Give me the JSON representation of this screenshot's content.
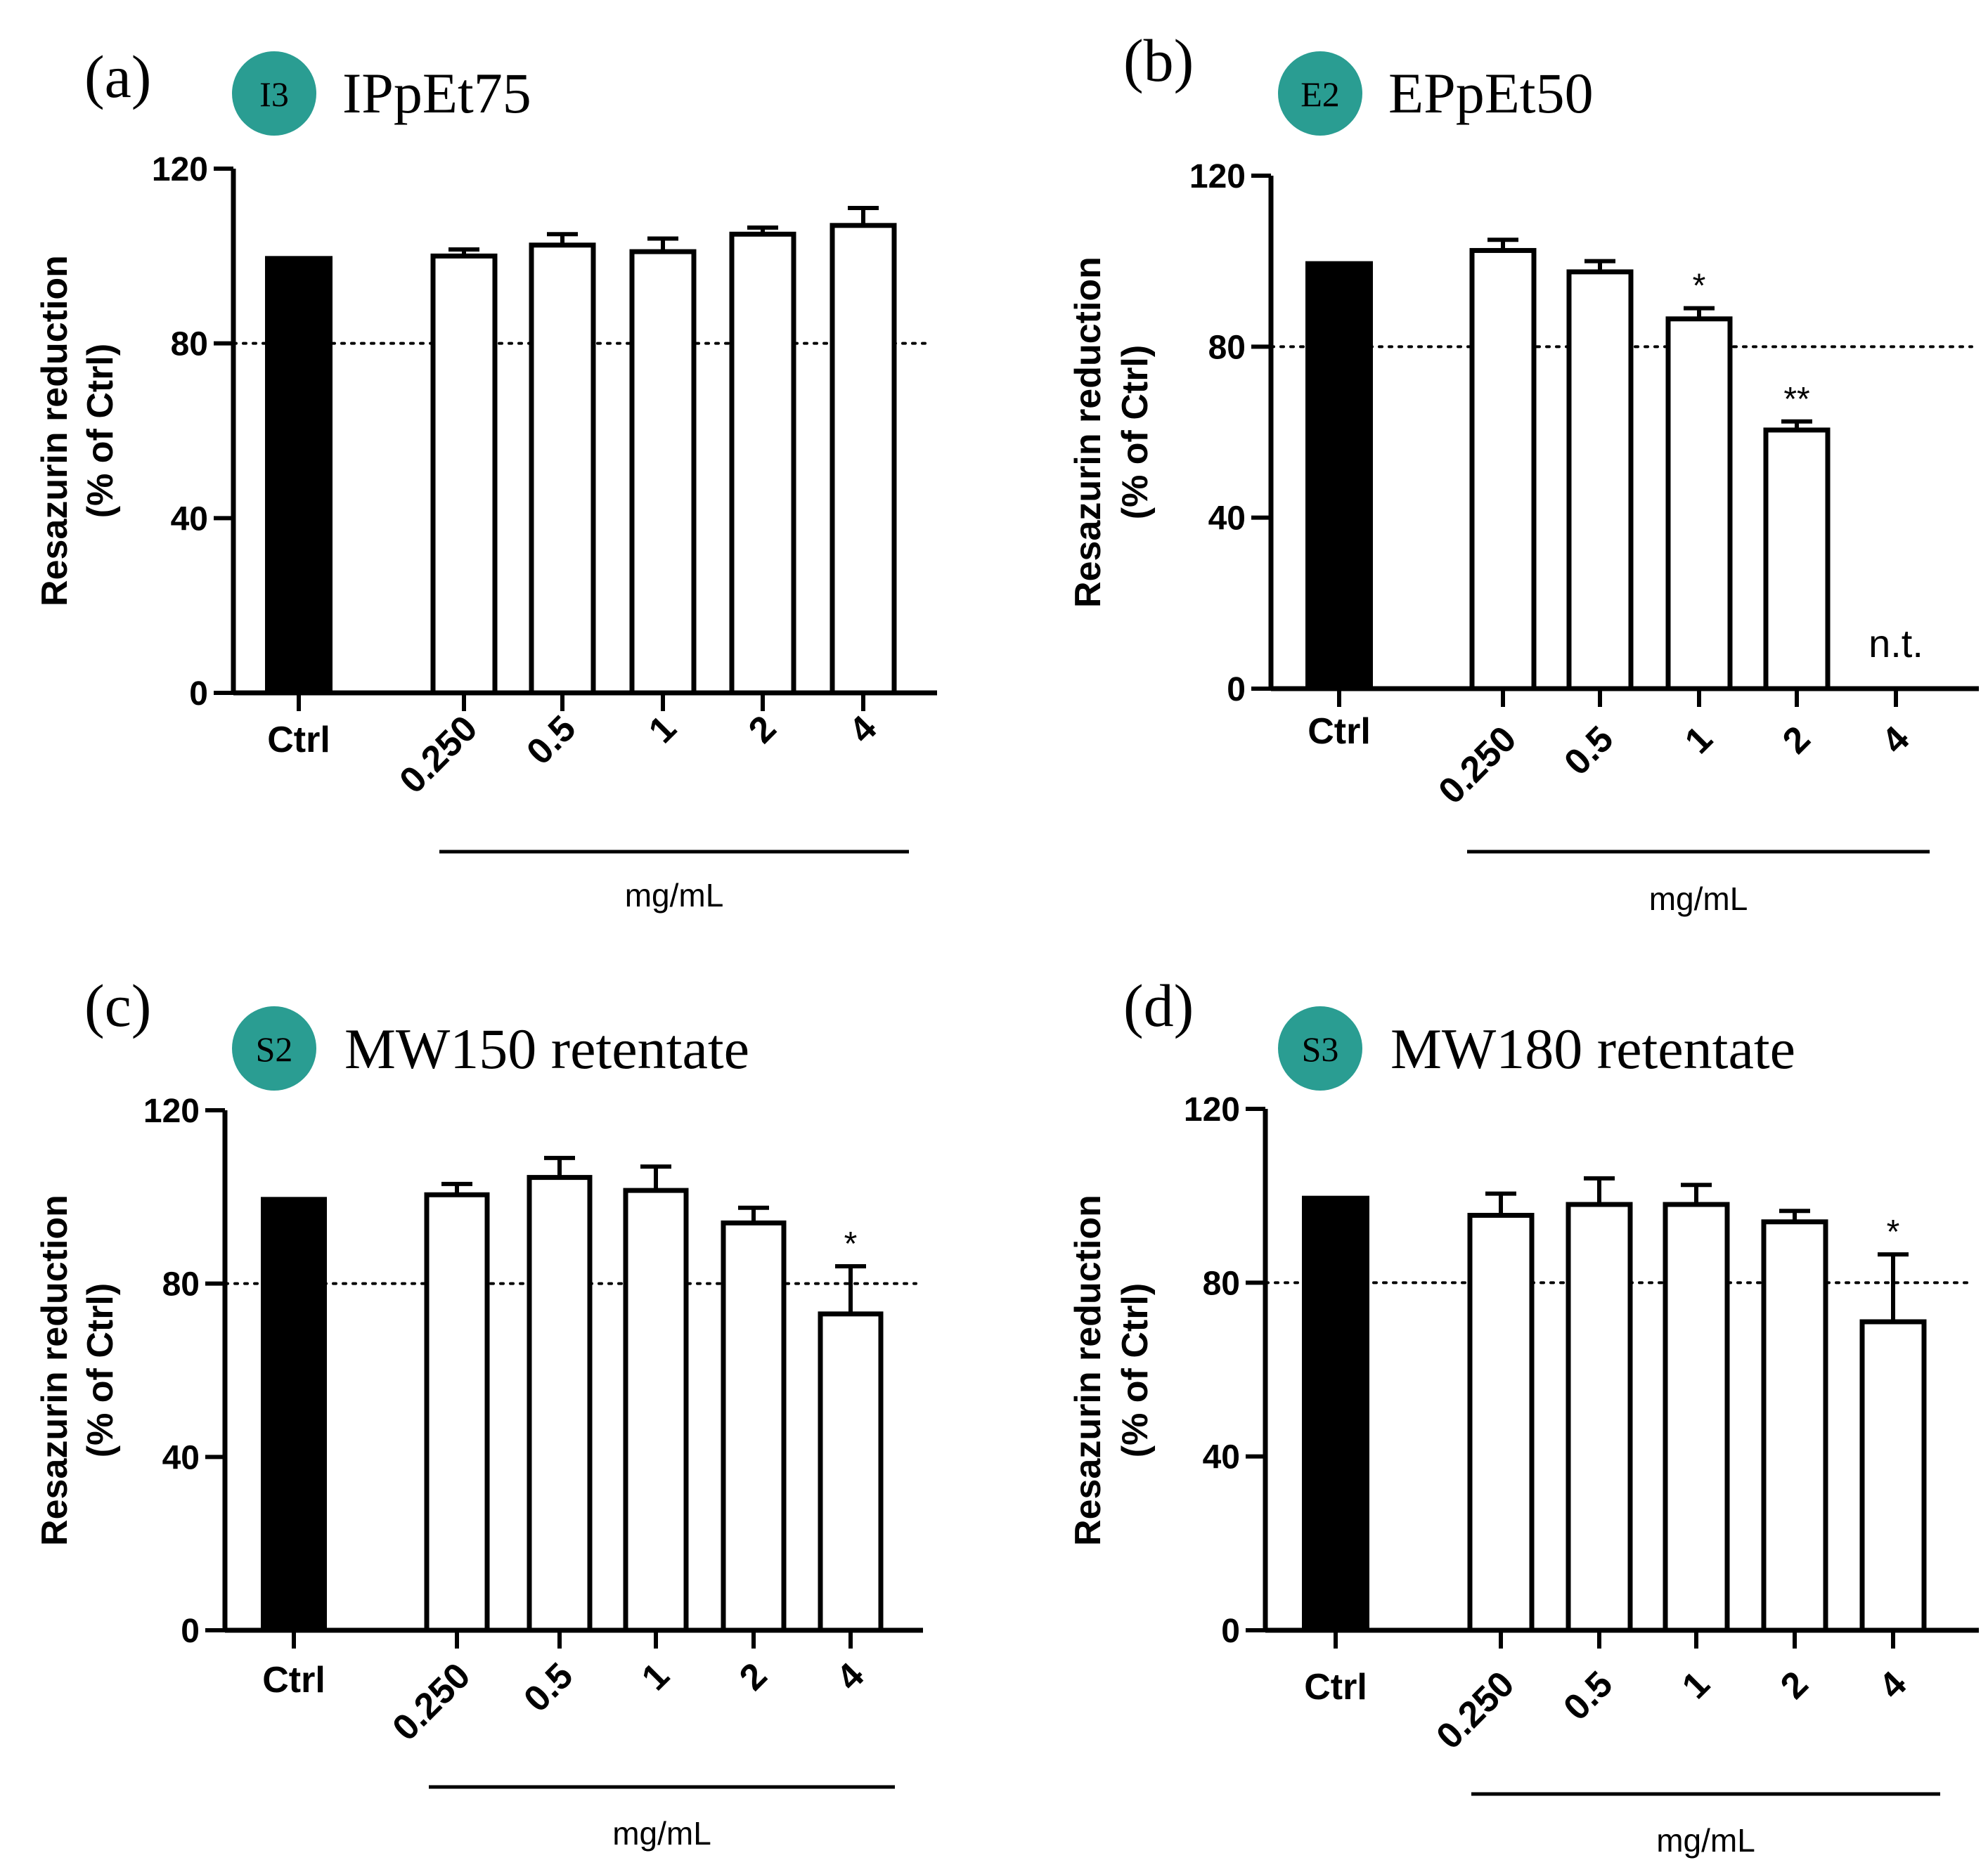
{
  "colors": {
    "badge": "#2a9d92",
    "control_bar": "#000000",
    "treated_bar": "#ffffff",
    "axis": "#000000"
  },
  "chart_data": [
    {
      "type": "bar",
      "panel_label": "(a)",
      "badge": "I3",
      "title": "IPpEt75",
      "categories": [
        "Ctrl",
        "0.250",
        "0.5",
        "1",
        "2",
        "4"
      ],
      "values": [
        100,
        100,
        102.5,
        101,
        105,
        107
      ],
      "errors": [
        0,
        1.5,
        2.5,
        3,
        1.5,
        4
      ],
      "annotations": [
        "",
        "",
        "",
        "",
        "",
        ""
      ],
      "ylabel_line1": "Resazurin reduction",
      "ylabel_line2": "(% of Ctrl)",
      "xlabel": "mg/mL",
      "ylim": [
        0,
        120
      ],
      "yticks": [
        0,
        40,
        80,
        120
      ],
      "reference_line": 80
    },
    {
      "type": "bar",
      "panel_label": "(b)",
      "badge": "E2",
      "title": "EPpEt50",
      "categories": [
        "Ctrl",
        "0.250",
        "0.5",
        "1",
        "2",
        "4"
      ],
      "values": [
        100,
        102.5,
        97.5,
        86.5,
        60.5,
        null
      ],
      "errors": [
        0,
        2.5,
        2.5,
        2.5,
        2,
        0
      ],
      "annotations": [
        "",
        "",
        "",
        "*",
        "**",
        "n.t."
      ],
      "ylabel_line1": "Resazurin reduction",
      "ylabel_line2": "(% of Ctrl)",
      "xlabel": "mg/mL",
      "ylim": [
        0,
        120
      ],
      "yticks": [
        0,
        40,
        80,
        120
      ],
      "reference_line": 80
    },
    {
      "type": "bar",
      "panel_label": "(c)",
      "badge": "S2",
      "title": "MW150 retentate",
      "categories": [
        "Ctrl",
        "0.250",
        "0.5",
        "1",
        "2",
        "4"
      ],
      "values": [
        100,
        100.5,
        104.5,
        101.5,
        94,
        73
      ],
      "errors": [
        0,
        2.5,
        4.5,
        5.5,
        3.5,
        11
      ],
      "annotations": [
        "",
        "",
        "",
        "",
        "",
        "*"
      ],
      "ylabel_line1": "Resazurin reduction",
      "ylabel_line2": "(% of Ctrl)",
      "xlabel": "mg/mL",
      "ylim": [
        0,
        120
      ],
      "yticks": [
        0,
        40,
        80,
        120
      ],
      "reference_line": 80
    },
    {
      "type": "bar",
      "panel_label": "(d)",
      "badge": "S3",
      "title": "MW180 retentate",
      "categories": [
        "Ctrl",
        "0.250",
        "0.5",
        "1",
        "2",
        "4"
      ],
      "values": [
        100,
        95.5,
        98,
        98,
        94,
        71
      ],
      "errors": [
        0,
        5,
        6,
        4.5,
        2.5,
        15.5
      ],
      "annotations": [
        "",
        "",
        "",
        "",
        "",
        "*"
      ],
      "ylabel_line1": "Resazurin reduction",
      "ylabel_line2": "(% of Ctrl)",
      "xlabel": "mg/mL",
      "ylim": [
        0,
        120
      ],
      "yticks": [
        0,
        40,
        80,
        120
      ],
      "reference_line": 80
    }
  ]
}
